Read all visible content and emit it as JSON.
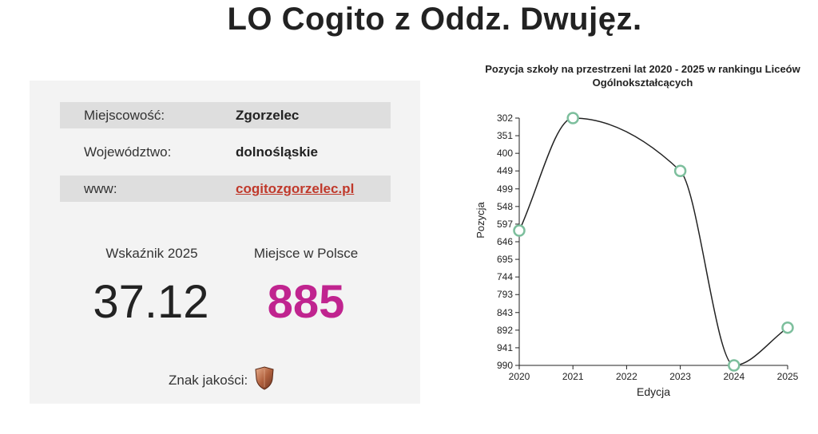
{
  "page": {
    "title": "LO Cogito z Oddz. Dwujęz."
  },
  "info": {
    "rows": [
      {
        "label": "Miejscowość:",
        "value": "Zgorzelec"
      },
      {
        "label": "Województwo:",
        "value": "dolnośląskie"
      },
      {
        "label": "www:",
        "value": "cogitozgorzelec.pl"
      }
    ]
  },
  "stats": {
    "index_label": "Wskaźnik 2025",
    "index_value": "37.12",
    "rank_label": "Miejsce w Polsce",
    "rank_value": "885",
    "quality_label": "Znak jakości:",
    "quality_icon": "bronze-shield-icon"
  },
  "colors": {
    "rank": "#c0248f",
    "link": "#c0392b",
    "point_stroke": "#7dbf9d"
  },
  "chart_data": {
    "type": "line",
    "title": "Pozycja szkoły na przestrzeni lat 2020 - 2025 w rankingu Liceów Ogólnokształcących",
    "xlabel": "Edycja",
    "ylabel": "Pozycja",
    "x": [
      2020,
      2021,
      2023,
      2024,
      2025
    ],
    "x_ticks": [
      "2020",
      "2021",
      "2022",
      "2023",
      "2024",
      "2025"
    ],
    "y": [
      615,
      302,
      449,
      990,
      885
    ],
    "y_ticks": [
      "302",
      "351",
      "400",
      "449",
      "499",
      "548",
      "597",
      "646",
      "695",
      "744",
      "793",
      "843",
      "892",
      "941",
      "990"
    ],
    "ylim": [
      302,
      990
    ],
    "y_inverted": true,
    "xlim": [
      2020,
      2025
    ],
    "grid": false
  }
}
